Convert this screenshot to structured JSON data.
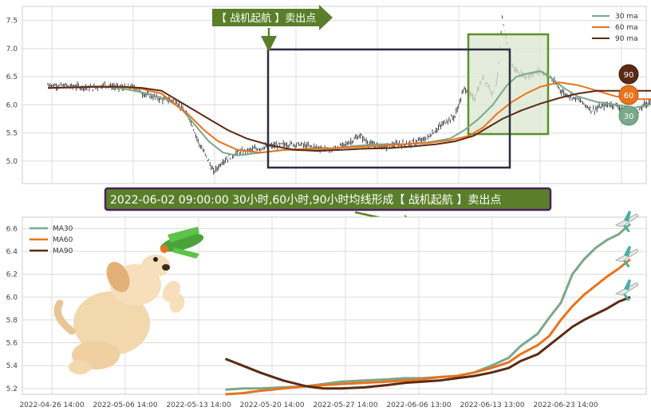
{
  "colors": {
    "ma30": "#7aa88a",
    "ma60": "#e8731e",
    "ma90": "#5c2a14",
    "candle": "#2e2e3e",
    "banner_green": "#5a7f2a",
    "banner_purple": "#4a2060",
    "box_dark": "#2a2f40",
    "box_green": "#5f8f2a",
    "box_green_fill": "#dbe7cf",
    "grid": "#dcdcdc"
  },
  "banners": {
    "top_signal": "【 战机起航 】卖出点",
    "middle_signal": "2022-06-02 09:00:00 30小时,60小时,90小时均线形成【 战机起航 】卖出点"
  },
  "badges": {
    "b90": "90",
    "b60": "60",
    "b30": "30"
  },
  "illustrations": [
    "dog-icon",
    "toy-plane-icon",
    "airplane-icon"
  ],
  "chart_data": [
    {
      "type": "line",
      "panel": "price-with-moving-averages",
      "title": "",
      "xlabel": "",
      "ylabel": "",
      "ylim": [
        4.6,
        7.75
      ],
      "yticks": [
        "5.0",
        "5.5",
        "6.0",
        "6.5",
        "7.0",
        "7.5"
      ],
      "legend": {
        "placement": "top-right",
        "entries": [
          "30 ma",
          "60 ma",
          "90 ma"
        ]
      },
      "grid": true,
      "x_index_range": [
        0,
        120
      ],
      "price_path": [
        [
          0,
          6.35
        ],
        [
          5,
          6.33
        ],
        [
          10,
          6.3
        ],
        [
          12,
          6.36
        ],
        [
          15,
          6.3
        ],
        [
          18,
          6.32
        ],
        [
          20,
          6.2
        ],
        [
          24,
          6.1
        ],
        [
          27,
          6.08
        ],
        [
          30,
          5.75
        ],
        [
          32,
          5.3
        ],
        [
          34,
          5.0
        ],
        [
          35,
          4.8
        ],
        [
          37,
          5.0
        ],
        [
          40,
          5.15
        ],
        [
          43,
          5.2
        ],
        [
          46,
          5.25
        ],
        [
          50,
          5.3
        ],
        [
          53,
          5.3
        ],
        [
          56,
          5.25
        ],
        [
          60,
          5.2
        ],
        [
          63,
          5.3
        ],
        [
          66,
          5.45
        ],
        [
          68,
          5.3
        ],
        [
          71,
          5.25
        ],
        [
          74,
          5.3
        ],
        [
          77,
          5.32
        ],
        [
          80,
          5.4
        ],
        [
          82,
          5.55
        ],
        [
          84,
          5.7
        ],
        [
          86,
          5.8
        ],
        [
          88,
          6.3
        ],
        [
          90,
          6.1
        ],
        [
          92,
          6.5
        ],
        [
          94,
          6.2
        ],
        [
          95,
          6.5
        ],
        [
          96,
          7.5
        ],
        [
          97,
          7.1
        ],
        [
          98,
          6.7
        ],
        [
          99,
          6.6
        ],
        [
          101,
          6.5
        ],
        [
          104,
          6.6
        ],
        [
          106,
          6.5
        ],
        [
          109,
          6.2
        ],
        [
          112,
          6.1
        ],
        [
          115,
          5.9
        ],
        [
          118,
          6.0
        ],
        [
          120,
          6.0
        ],
        [
          124,
          5.8
        ],
        [
          126,
          6.0
        ],
        [
          127,
          6.05
        ],
        [
          128,
          6.1
        ],
        [
          130,
          6.1
        ],
        [
          131,
          6.3
        ],
        [
          132,
          6.4
        ],
        [
          133,
          6.4
        ]
      ],
      "series": [
        {
          "name": "30 ma",
          "points": [
            [
              0,
              6.3
            ],
            [
              10,
              6.33
            ],
            [
              15,
              6.3
            ],
            [
              20,
              6.22
            ],
            [
              25,
              6.1
            ],
            [
              28,
              5.95
            ],
            [
              31,
              5.65
            ],
            [
              34,
              5.35
            ],
            [
              37,
              5.15
            ],
            [
              40,
              5.1
            ],
            [
              45,
              5.15
            ],
            [
              50,
              5.2
            ],
            [
              55,
              5.2
            ],
            [
              60,
              5.22
            ],
            [
              65,
              5.27
            ],
            [
              70,
              5.3
            ],
            [
              75,
              5.3
            ],
            [
              80,
              5.33
            ],
            [
              85,
              5.4
            ],
            [
              88,
              5.55
            ],
            [
              91,
              5.75
            ],
            [
              94,
              6.0
            ],
            [
              97,
              6.35
            ],
            [
              99,
              6.5
            ],
            [
              101,
              6.55
            ],
            [
              104,
              6.6
            ],
            [
              106,
              6.5
            ],
            [
              109,
              6.3
            ],
            [
              112,
              6.15
            ],
            [
              116,
              6.05
            ],
            [
              120,
              6.0
            ],
            [
              124,
              5.95
            ],
            [
              127,
              6.0
            ],
            [
              130,
              6.1
            ]
          ]
        },
        {
          "name": "60 ma",
          "points": [
            [
              0,
              6.3
            ],
            [
              10,
              6.32
            ],
            [
              15,
              6.32
            ],
            [
              20,
              6.28
            ],
            [
              24,
              6.2
            ],
            [
              27,
              6.0
            ],
            [
              30,
              5.8
            ],
            [
              33,
              5.55
            ],
            [
              36,
              5.35
            ],
            [
              40,
              5.2
            ],
            [
              45,
              5.15
            ],
            [
              50,
              5.2
            ],
            [
              55,
              5.22
            ],
            [
              60,
              5.23
            ],
            [
              65,
              5.25
            ],
            [
              70,
              5.27
            ],
            [
              75,
              5.3
            ],
            [
              80,
              5.32
            ],
            [
              85,
              5.37
            ],
            [
              89,
              5.45
            ],
            [
              92,
              5.6
            ],
            [
              95,
              5.85
            ],
            [
              98,
              6.05
            ],
            [
              101,
              6.2
            ],
            [
              104,
              6.32
            ],
            [
              108,
              6.4
            ],
            [
              112,
              6.35
            ],
            [
              116,
              6.25
            ],
            [
              120,
              6.15
            ],
            [
              124,
              6.1
            ],
            [
              128,
              6.1
            ],
            [
              131,
              6.12
            ]
          ]
        },
        {
          "name": "90 ma",
          "points": [
            [
              0,
              6.3
            ],
            [
              10,
              6.32
            ],
            [
              16,
              6.32
            ],
            [
              20,
              6.3
            ],
            [
              24,
              6.25
            ],
            [
              27,
              6.1
            ],
            [
              30,
              5.95
            ],
            [
              34,
              5.75
            ],
            [
              38,
              5.55
            ],
            [
              42,
              5.4
            ],
            [
              47,
              5.28
            ],
            [
              52,
              5.2
            ],
            [
              57,
              5.18
            ],
            [
              62,
              5.2
            ],
            [
              67,
              5.22
            ],
            [
              72,
              5.23
            ],
            [
              77,
              5.26
            ],
            [
              82,
              5.3
            ],
            [
              86,
              5.35
            ],
            [
              90,
              5.45
            ],
            [
              93,
              5.6
            ],
            [
              96,
              5.75
            ],
            [
              100,
              5.9
            ],
            [
              104,
              6.02
            ],
            [
              108,
              6.12
            ],
            [
              112,
              6.2
            ],
            [
              116,
              6.25
            ],
            [
              120,
              6.25
            ],
            [
              124,
              6.25
            ],
            [
              128,
              6.25
            ],
            [
              131,
              6.27
            ]
          ]
        }
      ]
    },
    {
      "type": "line",
      "panel": "moving-averages-zoom",
      "title": "",
      "xlabel": "",
      "ylabel": "",
      "ylim": [
        5.15,
        6.7
      ],
      "yticks": [
        "5.2",
        "5.4",
        "5.6",
        "5.8",
        "6.0",
        "6.2",
        "6.4",
        "6.6"
      ],
      "x": [
        "2022-04-26 14:00",
        "2022-05-06 14:00",
        "2022-05-13 14:00",
        "2022-05-20 14:00",
        "2022-05-27 14:00",
        "2022-06-06 13:00",
        "2022-06-13 13:00",
        "2022-06-23 14:00"
      ],
      "x_index_range": [
        0,
        100
      ],
      "legend": {
        "placement": "top-left",
        "entries": [
          "MA30",
          "MA60",
          "MA90"
        ]
      },
      "grid": true,
      "series": [
        {
          "name": "MA30",
          "points": [
            [
              30,
              5.19
            ],
            [
              33,
              5.2
            ],
            [
              36,
              5.2
            ],
            [
              40,
              5.21
            ],
            [
              44,
              5.22
            ],
            [
              47,
              5.24
            ],
            [
              50,
              5.26
            ],
            [
              54,
              5.27
            ],
            [
              58,
              5.28
            ],
            [
              61,
              5.29
            ],
            [
              64,
              5.29
            ],
            [
              67,
              5.3
            ],
            [
              70,
              5.31
            ],
            [
              73,
              5.34
            ],
            [
              76,
              5.4
            ],
            [
              79,
              5.47
            ],
            [
              81,
              5.57
            ],
            [
              84,
              5.68
            ],
            [
              86,
              5.82
            ],
            [
              88,
              5.95
            ],
            [
              90,
              6.2
            ],
            [
              92,
              6.33
            ],
            [
              94,
              6.43
            ],
            [
              96,
              6.5
            ],
            [
              98,
              6.55
            ],
            [
              100,
              6.64
            ]
          ]
        },
        {
          "name": "MA60",
          "points": [
            [
              30,
              5.15
            ],
            [
              33,
              5.16
            ],
            [
              36,
              5.18
            ],
            [
              40,
              5.2
            ],
            [
              44,
              5.22
            ],
            [
              47,
              5.23
            ],
            [
              50,
              5.24
            ],
            [
              54,
              5.25
            ],
            [
              58,
              5.26
            ],
            [
              61,
              5.27
            ],
            [
              64,
              5.28
            ],
            [
              67,
              5.3
            ],
            [
              70,
              5.31
            ],
            [
              73,
              5.34
            ],
            [
              76,
              5.38
            ],
            [
              79,
              5.43
            ],
            [
              81,
              5.5
            ],
            [
              84,
              5.58
            ],
            [
              86,
              5.66
            ],
            [
              88,
              5.8
            ],
            [
              90,
              5.92
            ],
            [
              92,
              6.02
            ],
            [
              94,
              6.1
            ],
            [
              96,
              6.18
            ],
            [
              98,
              6.25
            ],
            [
              100,
              6.33
            ]
          ]
        },
        {
          "name": "MA90",
          "points": [
            [
              30,
              5.46
            ],
            [
              33,
              5.4
            ],
            [
              36,
              5.34
            ],
            [
              40,
              5.27
            ],
            [
              44,
              5.22
            ],
            [
              47,
              5.2
            ],
            [
              50,
              5.2
            ],
            [
              54,
              5.21
            ],
            [
              58,
              5.23
            ],
            [
              61,
              5.25
            ],
            [
              64,
              5.26
            ],
            [
              67,
              5.27
            ],
            [
              70,
              5.29
            ],
            [
              73,
              5.31
            ],
            [
              76,
              5.34
            ],
            [
              79,
              5.38
            ],
            [
              81,
              5.44
            ],
            [
              84,
              5.5
            ],
            [
              86,
              5.58
            ],
            [
              88,
              5.66
            ],
            [
              90,
              5.74
            ],
            [
              92,
              5.8
            ],
            [
              94,
              5.85
            ],
            [
              96,
              5.9
            ],
            [
              98,
              5.96
            ],
            [
              100,
              6.0
            ]
          ]
        }
      ]
    }
  ]
}
